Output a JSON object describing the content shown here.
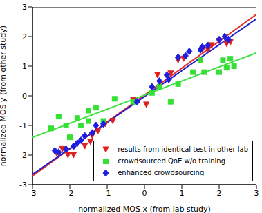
{
  "chart_data": {
    "type": "scatter",
    "x_label": "normalized MOS x (from lab study)",
    "y_label": "normalized MOS y (from other study)",
    "xlim": [
      -3,
      3
    ],
    "ylim": [
      -3,
      3
    ],
    "xticks": [
      -3,
      -2,
      -1,
      0,
      1,
      2,
      3
    ],
    "yticks": [
      -3,
      -2,
      -1,
      0,
      1,
      2,
      3
    ],
    "grid": false,
    "legend": "lower right",
    "series": [
      {
        "name": "results from identical test in other lab",
        "color": "#e02020",
        "marker": "triangle-down",
        "x": [
          -2.35,
          -2.2,
          -2.05,
          -1.9,
          -1.6,
          -1.45,
          -1.4,
          -1.25,
          -1.05,
          -0.85,
          -0.3,
          0.05,
          0.35,
          0.7,
          0.9,
          1.05,
          1.55,
          1.7,
          1.8,
          2.0,
          2.2,
          2.3
        ],
        "values": [
          -1.95,
          -1.8,
          -2.0,
          -2.0,
          -1.7,
          -1.55,
          -1.35,
          -1.2,
          -0.95,
          -0.85,
          -0.15,
          -0.3,
          0.7,
          0.75,
          1.2,
          1.25,
          1.55,
          1.55,
          1.7,
          1.85,
          1.75,
          1.8
        ]
      },
      {
        "name": "crowdsourced QoE w/o training",
        "color": "#33e033",
        "marker": "square",
        "x": [
          -2.5,
          -2.3,
          -2.1,
          -2.0,
          -1.8,
          -1.7,
          -1.5,
          -1.5,
          -1.3,
          -1.1,
          -0.8,
          -0.3,
          0.2,
          0.4,
          0.7,
          0.9,
          1.3,
          1.5,
          1.6,
          2.0,
          2.1,
          2.2,
          2.3,
          2.4
        ],
        "values": [
          -1.1,
          -0.7,
          -1.0,
          -1.4,
          -0.75,
          -1.0,
          -0.5,
          -0.85,
          -0.4,
          -0.85,
          -0.1,
          -0.2,
          0.1,
          0.3,
          -0.2,
          0.4,
          0.8,
          1.2,
          0.8,
          0.8,
          1.2,
          0.95,
          1.25,
          1.0
        ]
      },
      {
        "name": "enhanced crowdsourcing",
        "color": "#1e1ee0",
        "marker": "diamond",
        "x": [
          -2.4,
          -2.3,
          -2.1,
          -1.9,
          -1.8,
          -1.7,
          -1.6,
          -1.4,
          -1.3,
          -1.1,
          -0.2,
          0.2,
          0.4,
          0.6,
          0.65,
          0.9,
          1.1,
          1.2,
          1.5,
          1.55,
          1.7,
          2.0,
          2.15,
          2.25
        ],
        "values": [
          -1.85,
          -1.9,
          -1.8,
          -1.7,
          -1.6,
          -1.5,
          -1.35,
          -1.25,
          -1.0,
          -0.95,
          -0.2,
          0.3,
          0.5,
          0.7,
          0.55,
          1.3,
          1.35,
          1.5,
          1.55,
          1.65,
          1.7,
          1.9,
          2.0,
          1.9
        ]
      }
    ],
    "fit_lines": [
      {
        "color": "#e03030",
        "x": [
          -3,
          3
        ],
        "values": [
          -2.7,
          2.75
        ]
      },
      {
        "color": "#2020d0",
        "x": [
          -3,
          3
        ],
        "values": [
          -2.65,
          2.6
        ]
      },
      {
        "color": "#40e040",
        "x": [
          -3,
          3
        ],
        "values": [
          -1.4,
          1.45
        ]
      }
    ]
  }
}
